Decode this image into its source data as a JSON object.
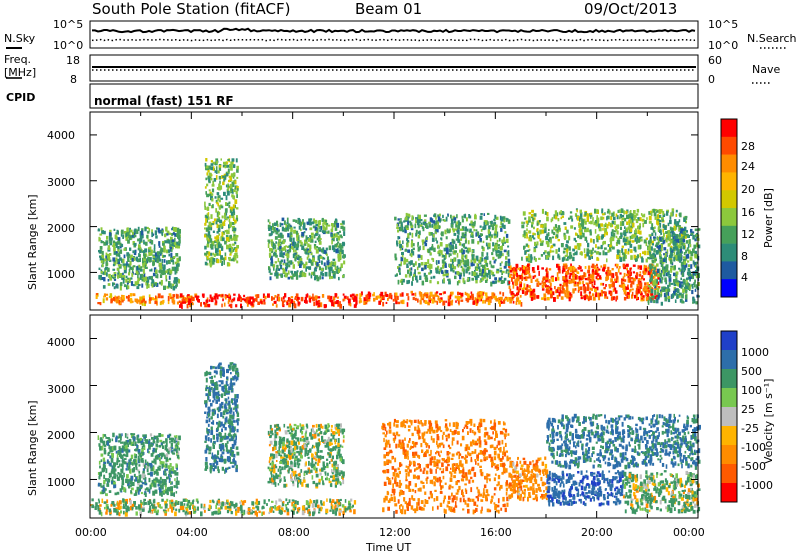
{
  "header": {
    "title": "South Pole Station (fitACF)",
    "beam": "Beam 01",
    "date": "09/Oct/2013"
  },
  "panels": {
    "sky": {
      "left_label": "N.Sky",
      "left_ticks": [
        "10^5",
        "10^0"
      ],
      "right_ticks": [
        "10^5",
        "10^0"
      ],
      "right_label": "N.Search"
    },
    "freq": {
      "left_label_lines": [
        "Freq.",
        "[MHz]"
      ],
      "left_ticks": [
        "18",
        "8"
      ],
      "right_ticks": [
        "60",
        "0"
      ],
      "right_label": "Nave"
    },
    "cpid": {
      "left_label": "CPID",
      "text": "normal (fast) 151 RF"
    }
  },
  "power_panel": {
    "ylabel": "Slant Range [km]",
    "yticks": [
      "4000",
      "3000",
      "2000",
      "1000"
    ],
    "colorbar": {
      "label": "Power [dB]",
      "ticks": [
        "28",
        "24",
        "20",
        "16",
        "12",
        "8",
        "4"
      ],
      "colors": [
        "#ff0000",
        "#ff4a00",
        "#ff8c00",
        "#ffb400",
        "#d2c800",
        "#8cc83c",
        "#46a05a",
        "#2d8c78",
        "#1e5aa0",
        "#0000ff"
      ]
    }
  },
  "velocity_panel": {
    "ylabel": "Slant Range [km]",
    "yticks": [
      "4000",
      "3000",
      "2000",
      "1000"
    ],
    "colorbar": {
      "label": "Velocity [m s⁻¹]",
      "ticks": [
        "1000",
        "500",
        "100",
        "25",
        "-25",
        "-100",
        "-500",
        "-1000"
      ],
      "colors": [
        "#2040c8",
        "#2d6eaa",
        "#3c9664",
        "#78c850",
        "#bebebe",
        "#ffb400",
        "#ff8c00",
        "#ff5a00",
        "#ff0000"
      ]
    }
  },
  "x_axis": {
    "label": "Time UT",
    "ticks": [
      "00:00",
      "04:00",
      "08:00",
      "12:00",
      "16:00",
      "20:00",
      "00:00"
    ]
  },
  "chart_data": [
    {
      "type": "heatmap",
      "title": "South Pole Station (fitACF)",
      "xlabel": "Time UT",
      "ylabel": "Slant Range [km]",
      "xlim": [
        0,
        24
      ],
      "ylim": [
        180,
        4500
      ],
      "colorbar_label": "Power [dB]",
      "colorbar_range": [
        0,
        30
      ],
      "regions": [
        {
          "t0": 0.0,
          "t1": 4.0,
          "r0": 350,
          "r1": 550,
          "value": 22
        },
        {
          "t0": 0.3,
          "t1": 3.5,
          "r0": 700,
          "r1": 2000,
          "value": 10
        },
        {
          "t0": 3.5,
          "t1": 10.5,
          "r0": 300,
          "r1": 550,
          "value": 27
        },
        {
          "t0": 4.5,
          "t1": 5.8,
          "r0": 1200,
          "r1": 3500,
          "value": 12
        },
        {
          "t0": 7.0,
          "t1": 10.0,
          "r0": 900,
          "r1": 2200,
          "value": 10
        },
        {
          "t0": 10.5,
          "t1": 17.0,
          "r0": 350,
          "r1": 600,
          "value": 24
        },
        {
          "t0": 12.0,
          "t1": 16.5,
          "r0": 800,
          "r1": 2300,
          "value": 10
        },
        {
          "t0": 16.5,
          "t1": 22.5,
          "r0": 450,
          "r1": 1200,
          "value": 25
        },
        {
          "t0": 17.0,
          "t1": 23.5,
          "r0": 1300,
          "r1": 2400,
          "value": 12
        },
        {
          "t0": 22.0,
          "t1": 24.0,
          "r0": 350,
          "r1": 2000,
          "value": 9
        }
      ]
    },
    {
      "type": "heatmap",
      "title": "South Pole Station (fitACF)",
      "xlabel": "Time UT",
      "ylabel": "Slant Range [km]",
      "xlim": [
        0,
        24
      ],
      "ylim": [
        180,
        4500
      ],
      "colorbar_label": "Velocity [m s⁻¹]",
      "colorbar_range": [
        -1000,
        1000
      ],
      "regions": [
        {
          "t0": 0.0,
          "t1": 10.5,
          "r0": 300,
          "r1": 600,
          "value": 80
        },
        {
          "t0": 0.3,
          "t1": 3.5,
          "r0": 700,
          "r1": 2000,
          "value": 300
        },
        {
          "t0": 4.5,
          "t1": 5.8,
          "r0": 1200,
          "r1": 3500,
          "value": 500
        },
        {
          "t0": 7.0,
          "t1": 10.0,
          "r0": 900,
          "r1": 2200,
          "value": 150
        },
        {
          "t0": 11.5,
          "t1": 16.5,
          "r0": 350,
          "r1": 2300,
          "value": -400
        },
        {
          "t0": 16.5,
          "t1": 18.0,
          "r0": 600,
          "r1": 1500,
          "value": -300
        },
        {
          "t0": 18.0,
          "t1": 21.0,
          "r0": 500,
          "r1": 1200,
          "value": 900
        },
        {
          "t0": 18.0,
          "t1": 24.0,
          "r0": 1300,
          "r1": 2400,
          "value": 600
        },
        {
          "t0": 21.0,
          "t1": 24.0,
          "r0": 350,
          "r1": 1200,
          "value": 150
        }
      ]
    }
  ]
}
